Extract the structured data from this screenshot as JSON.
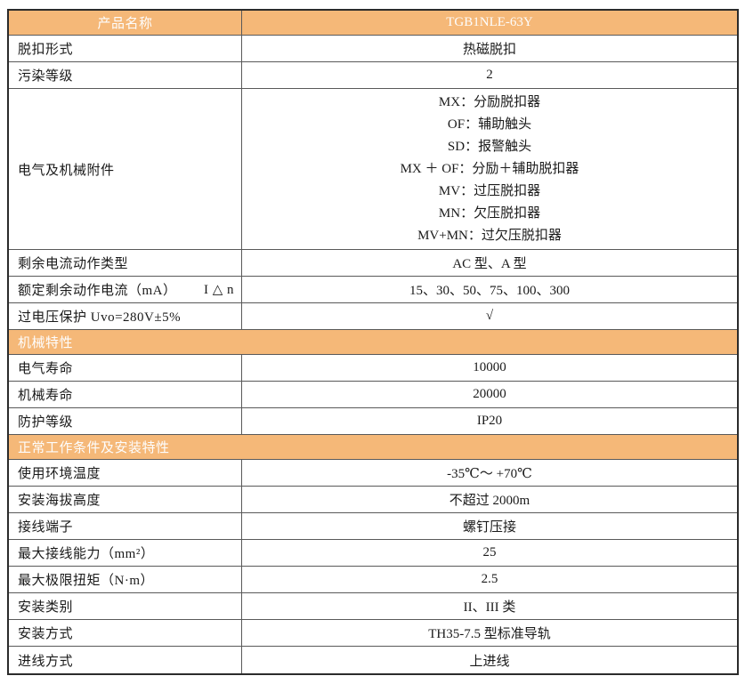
{
  "theme": {
    "orange": "#F5B878",
    "border_light": "#595959",
    "border_dark": "#2B2B2B",
    "header_text": "#FDFDFD",
    "body_text": "#1A1A1A"
  },
  "table": {
    "header": {
      "name_label": "产品名称",
      "model": "TGB1NLE-63Y"
    },
    "rows": [
      {
        "type": "row",
        "label": "脱扣形式",
        "value": "热磁脱扣"
      },
      {
        "type": "row",
        "label": "污染等级",
        "value": "2"
      },
      {
        "type": "row",
        "label": "电气及机械附件",
        "lines": [
          "MX：分励脱扣器",
          "OF：辅助触头",
          "SD：报警触头",
          "MX ＋ OF：分励＋辅助脱扣器",
          "MV：过压脱扣器",
          "MN：欠压脱扣器",
          "MV+MN：过欠压脱扣器"
        ]
      },
      {
        "type": "row",
        "label": "剩余电流动作类型",
        "value": "AC 型、A 型"
      },
      {
        "type": "row",
        "label": "额定剩余动作电流（mA）",
        "label_right": "I △ n",
        "value": "15、30、50、75、100、300"
      },
      {
        "type": "row",
        "label": "过电压保护 Uvo=280V±5%",
        "value": "√"
      },
      {
        "type": "section",
        "label": "机械特性"
      },
      {
        "type": "row",
        "label": "电气寿命",
        "value": "10000"
      },
      {
        "type": "row",
        "label": "机械寿命",
        "value": "20000"
      },
      {
        "type": "row",
        "label": "防护等级",
        "value": "IP20"
      },
      {
        "type": "section",
        "label": "正常工作条件及安装特性"
      },
      {
        "type": "row",
        "label": "使用环境温度",
        "value": "-35℃～ +70℃"
      },
      {
        "type": "row",
        "label": "安装海拔高度",
        "value": "不超过 2000m"
      },
      {
        "type": "row",
        "label": "接线端子",
        "value": "螺钉压接"
      },
      {
        "type": "row",
        "label": "最大接线能力（mm²）",
        "value": "25"
      },
      {
        "type": "row",
        "label": "最大极限扭矩（N·m）",
        "value": "2.5"
      },
      {
        "type": "row",
        "label": "安装类别",
        "value": "II、III 类"
      },
      {
        "type": "row",
        "label": "安装方式",
        "value": "TH35-7.5 型标准导轨"
      },
      {
        "type": "row",
        "label": "进线方式",
        "value": "上进线"
      }
    ]
  }
}
